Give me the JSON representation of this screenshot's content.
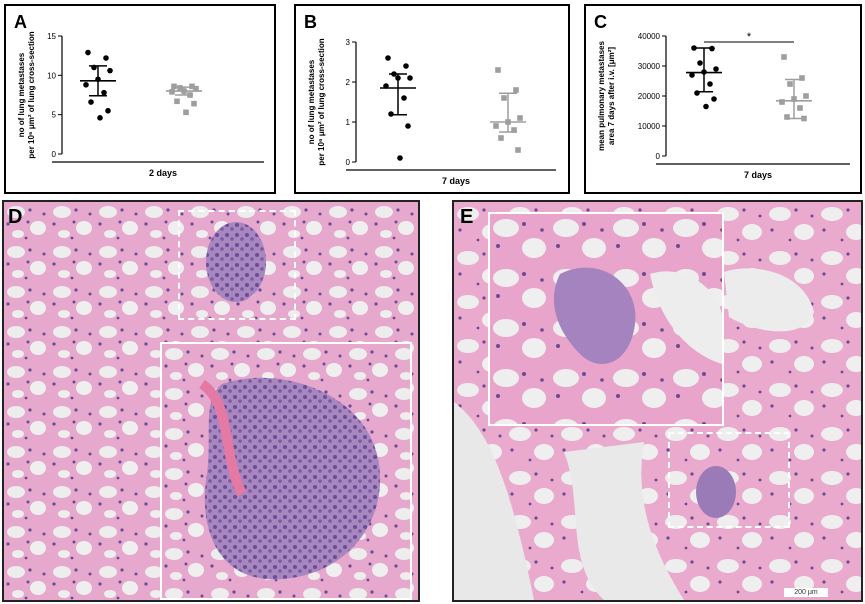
{
  "panels": {
    "a": {
      "letter": "A"
    },
    "b": {
      "letter": "B"
    },
    "c": {
      "letter": "C"
    },
    "d": {
      "letter": "D"
    },
    "e": {
      "letter": "E"
    }
  },
  "scale_bar_label": "200 μm",
  "colors": {
    "group1": "#000000",
    "group2": "#9e9e9e",
    "tissue_pink": "#e6a3c8",
    "tissue_purple": "#7a4f9e"
  },
  "chart_data": [
    {
      "type": "scatter",
      "panel": "A",
      "title": "",
      "ylabel_lines": [
        "no of lung metastases",
        "per 10⁶ μm² of lung cross-section"
      ],
      "xlabel": "2 days",
      "ylim": [
        0,
        15
      ],
      "yticks": [
        0,
        5,
        10,
        15
      ],
      "series": [
        {
          "group": 1,
          "values": [
            12.9,
            12.2,
            11.0,
            10.6,
            9.5,
            8.8,
            7.8,
            6.6,
            5.5,
            4.6
          ],
          "mean": 9.3,
          "sd_low": 7.4,
          "sd_high": 11.2
        },
        {
          "group": 2,
          "values": [
            8.6,
            8.6,
            8.4,
            8.3,
            8.0,
            7.9,
            7.5,
            6.7,
            6.4,
            5.3
          ],
          "mean": 8.0,
          "sd_low": 7.5,
          "sd_high": 8.5
        }
      ]
    },
    {
      "type": "scatter",
      "panel": "B",
      "title": "",
      "ylabel_lines": [
        "no of lung metastases",
        "per 10⁶ μm² of lung cross-section"
      ],
      "xlabel": "7 days",
      "ylim": [
        0,
        3
      ],
      "yticks": [
        0,
        1,
        2,
        3
      ],
      "series": [
        {
          "group": 1,
          "values": [
            2.6,
            2.4,
            2.2,
            2.1,
            2.1,
            1.9,
            1.6,
            1.2,
            0.9,
            0.1
          ],
          "mean": 1.85,
          "sd_low": 1.18,
          "sd_high": 2.2
        },
        {
          "group": 2,
          "values": [
            2.3,
            1.8,
            1.6,
            1.1,
            1.0,
            0.9,
            0.8,
            0.6,
            0.3
          ],
          "mean": 1.0,
          "sd_low": 0.75,
          "sd_high": 1.72
        }
      ]
    },
    {
      "type": "scatter",
      "panel": "C",
      "title": "",
      "ylabel_lines": [
        "mean pulmonary metastases",
        "area 7 days after i.v. [μm²]"
      ],
      "xlabel": "7 days",
      "ylim": [
        0,
        40000
      ],
      "yticks": [
        0,
        10000,
        20000,
        30000,
        40000
      ],
      "significance": "*",
      "series": [
        {
          "group": 1,
          "values": [
            36000,
            35800,
            31000,
            29000,
            28000,
            27000,
            24000,
            21000,
            19000,
            16500
          ],
          "mean": 27800,
          "sd_low": 21400,
          "sd_high": 36000
        },
        {
          "group": 2,
          "values": [
            33000,
            26000,
            24000,
            20000,
            19000,
            18000,
            16000,
            13000,
            12500
          ],
          "mean": 18400,
          "sd_low": 12500,
          "sd_high": 25500
        }
      ]
    }
  ]
}
